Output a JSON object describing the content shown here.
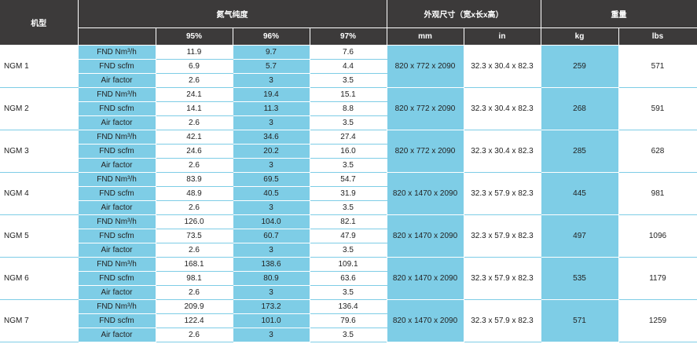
{
  "header": {
    "model": "机型",
    "purity": "氮气纯度",
    "dimensions": "外观尺寸（宽x长x高）",
    "weight": "重量",
    "purity_levels": [
      "95%",
      "96%",
      "97%"
    ],
    "dim_units": [
      "mm",
      "in"
    ],
    "weight_units": [
      "kg",
      "lbs"
    ]
  },
  "row_labels": [
    "FND Nm³/h",
    "FND scfm",
    "Air factor"
  ],
  "models": [
    {
      "name": "NGM 1",
      "values": [
        [
          "11.9",
          "9.7",
          "7.6"
        ],
        [
          "6.9",
          "5.7",
          "4.4"
        ],
        [
          "2.6",
          "3",
          "3.5"
        ]
      ],
      "mm": "820 x 772 x 2090",
      "in": "32.3 x 30.4 x 82.3",
      "kg": "259",
      "lbs": "571"
    },
    {
      "name": "NGM 2",
      "values": [
        [
          "24.1",
          "19.4",
          "15.1"
        ],
        [
          "14.1",
          "11.3",
          "8.8"
        ],
        [
          "2.6",
          "3",
          "3.5"
        ]
      ],
      "mm": "820 x 772 x 2090",
      "in": "32.3 x 30.4 x 82.3",
      "kg": "268",
      "lbs": "591"
    },
    {
      "name": "NGM 3",
      "values": [
        [
          "42.1",
          "34.6",
          "27.4"
        ],
        [
          "24.6",
          "20.2",
          "16.0"
        ],
        [
          "2.6",
          "3",
          "3.5"
        ]
      ],
      "mm": "820 x 772 x 2090",
      "in": "32.3 x 30.4 x 82.3",
      "kg": "285",
      "lbs": "628"
    },
    {
      "name": "NGM 4",
      "values": [
        [
          "83.9",
          "69.5",
          "54.7"
        ],
        [
          "48.9",
          "40.5",
          "31.9"
        ],
        [
          "2.6",
          "3",
          "3.5"
        ]
      ],
      "mm": "820 x 1470 x 2090",
      "in": "32.3 x 57.9 x 82.3",
      "kg": "445",
      "lbs": "981"
    },
    {
      "name": "NGM 5",
      "values": [
        [
          "126.0",
          "104.0",
          "82.1"
        ],
        [
          "73.5",
          "60.7",
          "47.9"
        ],
        [
          "2.6",
          "3",
          "3.5"
        ]
      ],
      "mm": "820 x 1470 x 2090",
      "in": "32.3 x 57.9 x 82.3",
      "kg": "497",
      "lbs": "1096"
    },
    {
      "name": "NGM 6",
      "values": [
        [
          "168.1",
          "138.6",
          "109.1"
        ],
        [
          "98.1",
          "80.9",
          "63.6"
        ],
        [
          "2.6",
          "3",
          "3.5"
        ]
      ],
      "mm": "820 x 1470 x 2090",
      "in": "32.3 x 57.9 x 82.3",
      "kg": "535",
      "lbs": "1179"
    },
    {
      "name": "NGM 7",
      "values": [
        [
          "209.9",
          "173.2",
          "136.4"
        ],
        [
          "122.4",
          "101.0",
          "79.6"
        ],
        [
          "2.6",
          "3",
          "3.5"
        ]
      ],
      "mm": "820 x 1470 x 2090",
      "in": "32.3 x 57.9 x 82.3",
      "kg": "571",
      "lbs": "1259"
    }
  ],
  "colors": {
    "header_bg": "#3c3a3a",
    "accent_blue": "#7ecde6",
    "text": "#222222"
  }
}
